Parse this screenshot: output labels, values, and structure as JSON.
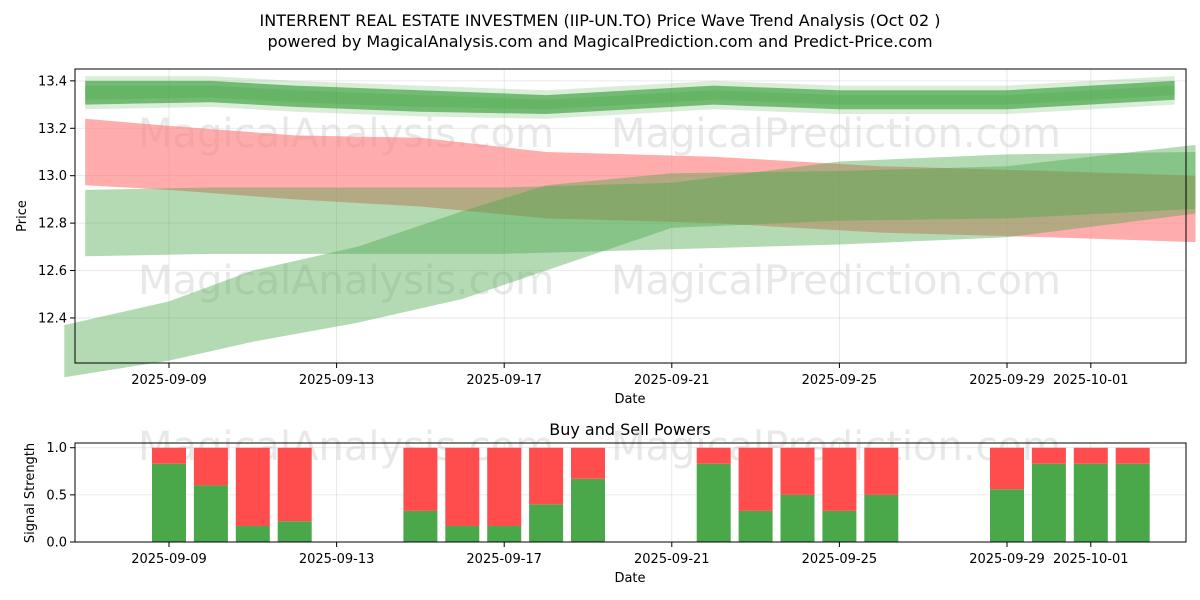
{
  "chart_data": [
    {
      "type": "area",
      "title": "INTERRENT REAL ESTATE INVESTMEN (IIP-UN.TO) Price Wave Trend Analysis (Oct 02 )",
      "subtitle": "powered by MagicalAnalysis.com and MagicalPrediction.com and Predict-Price.com",
      "xlabel": "Date",
      "ylabel": "Price",
      "x_tick_labels": [
        "2025-09-09",
        "2025-09-13",
        "2025-09-17",
        "2025-09-21",
        "2025-09-25",
        "2025-09-29",
        "2025-10-01"
      ],
      "y_tick_labels": [
        "12.4",
        "12.6",
        "12.8",
        "13.0",
        "13.2",
        "13.4"
      ],
      "ylim": [
        12.21,
        13.45
      ],
      "grid": true,
      "watermarks": [
        "MagicalAnalysis.com",
        "MagicalPrediction.com"
      ],
      "series": [
        {
          "name": "upper-green-band",
          "color": "#2e9a2e",
          "x_days": [
            7,
            10,
            12,
            15,
            18,
            22,
            25,
            29,
            33
          ],
          "upper": [
            13.4,
            13.4,
            13.38,
            13.36,
            13.34,
            13.38,
            13.36,
            13.36,
            13.4
          ],
          "lower": [
            13.3,
            13.31,
            13.29,
            13.27,
            13.26,
            13.3,
            13.28,
            13.28,
            13.32
          ]
        },
        {
          "name": "red-band",
          "color": "#ff8080",
          "x_days": [
            7,
            9,
            12,
            15,
            18,
            22,
            26,
            30,
            33.5
          ],
          "upper": [
            13.24,
            13.21,
            13.17,
            13.16,
            13.1,
            13.08,
            13.04,
            13.02,
            13.0
          ],
          "lower": [
            12.96,
            12.94,
            12.9,
            12.87,
            12.82,
            12.8,
            12.76,
            12.74,
            12.72
          ]
        },
        {
          "name": "wide-green-band",
          "color": "#4aa84a",
          "x_days": [
            7,
            10,
            13,
            17,
            21,
            25,
            29,
            33.5
          ],
          "upper": [
            12.94,
            12.95,
            12.95,
            12.95,
            12.97,
            13.06,
            13.09,
            13.1
          ],
          "lower": [
            12.66,
            12.67,
            12.67,
            12.67,
            12.69,
            12.71,
            12.74,
            12.84
          ]
        },
        {
          "name": "rising-green-band",
          "color": "#4aa84a",
          "x_days": [
            6.5,
            9,
            11,
            13.5,
            16,
            18,
            21,
            25,
            29,
            33.5
          ],
          "upper": [
            12.37,
            12.47,
            12.6,
            12.7,
            12.85,
            12.96,
            13.01,
            13.02,
            13.04,
            13.13
          ],
          "lower": [
            12.15,
            12.22,
            12.3,
            12.38,
            12.48,
            12.6,
            12.78,
            12.81,
            12.82,
            12.86
          ]
        }
      ]
    },
    {
      "type": "bar",
      "title": "Buy and Sell Powers",
      "xlabel": "Date",
      "ylabel": "Signal Strength",
      "x_tick_labels": [
        "2025-09-09",
        "2025-09-13",
        "2025-09-17",
        "2025-09-21",
        "2025-09-25",
        "2025-09-29",
        "2025-10-01"
      ],
      "y_tick_labels": [
        "0.0",
        "0.5",
        "1.0"
      ],
      "ylim": [
        0,
        1.05
      ],
      "buy_color": "#4aa84a",
      "sell_color": "#ff4c4c",
      "x_days": [
        9,
        10,
        11,
        12,
        15,
        16,
        17,
        18,
        19,
        22,
        23,
        24,
        25,
        26,
        29,
        30,
        31,
        32
      ],
      "buy": [
        0.83,
        0.6,
        0.17,
        0.22,
        0.33,
        0.17,
        0.17,
        0.4,
        0.67,
        0.83,
        0.33,
        0.5,
        0.33,
        0.5,
        0.56,
        0.83,
        0.83,
        0.83
      ],
      "sell": [
        0.17,
        0.4,
        0.83,
        0.78,
        0.67,
        0.83,
        0.83,
        0.6,
        0.33,
        0.17,
        0.67,
        0.5,
        0.67,
        0.5,
        0.44,
        0.17,
        0.17,
        0.17
      ]
    }
  ]
}
